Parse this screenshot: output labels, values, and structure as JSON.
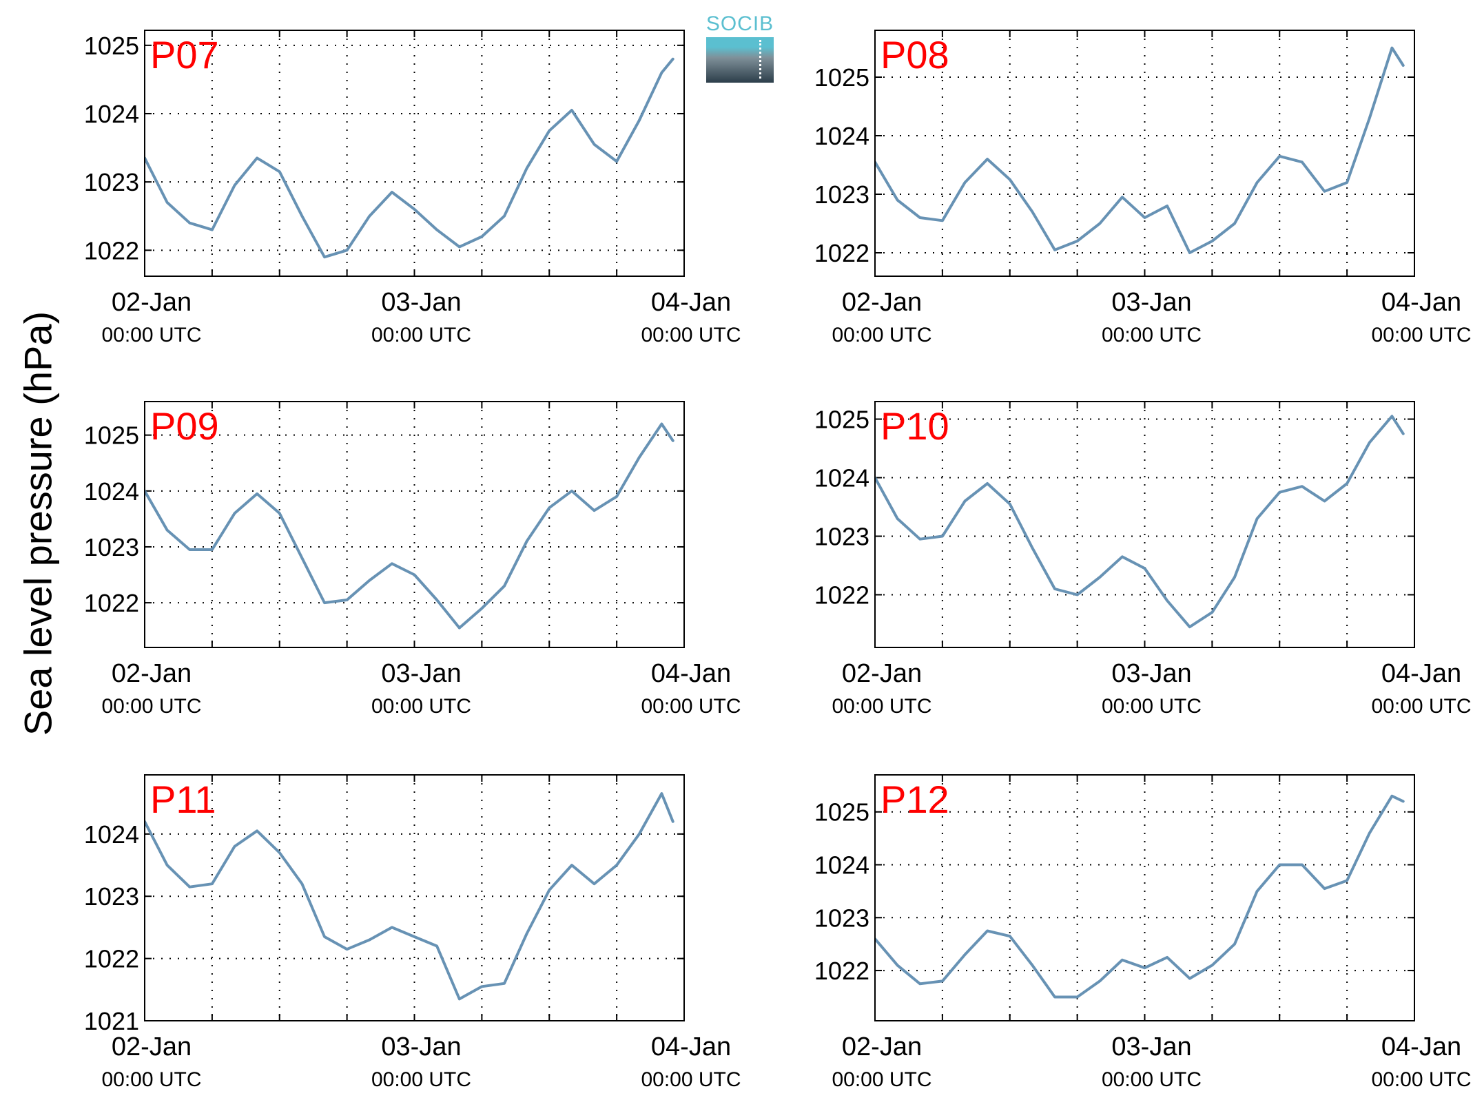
{
  "ylabel": "Sea level pressure (hPa)",
  "logo": {
    "text": "SOCIB"
  },
  "colors": {
    "line": "#6792b4",
    "panel_title": "#ff0000",
    "axis": "#000000"
  },
  "x_ticks": [
    {
      "date": "02-Jan",
      "time": "00:00 UTC"
    },
    {
      "date": "03-Jan",
      "time": "00:00 UTC"
    },
    {
      "date": "04-Jan",
      "time": "00:00 UTC"
    }
  ],
  "chart_data": [
    {
      "type": "line",
      "title": "P07",
      "xlabel": "",
      "ylabel": "Sea level pressure (hPa)",
      "x_range": [
        "02-Jan 00:00 UTC",
        "04-Jan 00:00 UTC"
      ],
      "ylim": [
        1021.62,
        1025.22
      ],
      "yticks": [
        1022,
        1023,
        1024,
        1025
      ],
      "grid": true,
      "x_hours": [
        0,
        2,
        4,
        6,
        8,
        10,
        12,
        14,
        16,
        18,
        20,
        22,
        24,
        26,
        28,
        30,
        32,
        34,
        36,
        38,
        40,
        42,
        44,
        46,
        47
      ],
      "values": [
        1023.35,
        1022.7,
        1022.4,
        1022.3,
        1022.95,
        1023.35,
        1023.15,
        1022.5,
        1021.9,
        1022.0,
        1022.5,
        1022.85,
        1022.6,
        1022.3,
        1022.05,
        1022.2,
        1022.5,
        1023.2,
        1023.75,
        1024.05,
        1023.55,
        1023.3,
        1023.9,
        1024.6,
        1024.8
      ]
    },
    {
      "type": "line",
      "title": "P08",
      "xlabel": "",
      "ylabel": "Sea level pressure (hPa)",
      "x_range": [
        "02-Jan 00:00 UTC",
        "04-Jan 00:00 UTC"
      ],
      "ylim": [
        1021.6,
        1025.8
      ],
      "yticks": [
        1022,
        1023,
        1024,
        1025
      ],
      "grid": true,
      "x_hours": [
        0,
        2,
        4,
        6,
        8,
        10,
        12,
        14,
        16,
        18,
        20,
        22,
        24,
        26,
        28,
        30,
        32,
        34,
        36,
        38,
        40,
        42,
        44,
        46,
        47
      ],
      "values": [
        1023.55,
        1022.9,
        1022.6,
        1022.55,
        1023.2,
        1023.6,
        1023.25,
        1022.7,
        1022.05,
        1022.2,
        1022.5,
        1022.95,
        1022.6,
        1022.8,
        1022.0,
        1022.2,
        1022.5,
        1023.2,
        1023.65,
        1023.55,
        1023.05,
        1023.2,
        1024.3,
        1025.5,
        1025.2
      ]
    },
    {
      "type": "line",
      "title": "P09",
      "xlabel": "",
      "ylabel": "Sea level pressure (hPa)",
      "x_range": [
        "02-Jan 00:00 UTC",
        "04-Jan 00:00 UTC"
      ],
      "ylim": [
        1021.2,
        1025.6
      ],
      "yticks": [
        1022,
        1023,
        1024,
        1025
      ],
      "grid": true,
      "x_hours": [
        0,
        2,
        4,
        6,
        8,
        10,
        12,
        14,
        16,
        18,
        20,
        22,
        24,
        26,
        28,
        30,
        32,
        34,
        36,
        38,
        40,
        42,
        44,
        46,
        47
      ],
      "values": [
        1024.0,
        1023.3,
        1022.95,
        1022.95,
        1023.6,
        1023.95,
        1023.6,
        1022.8,
        1022.0,
        1022.05,
        1022.4,
        1022.7,
        1022.5,
        1022.05,
        1021.55,
        1021.9,
        1022.3,
        1023.1,
        1023.7,
        1024.0,
        1023.65,
        1023.9,
        1024.6,
        1025.2,
        1024.9
      ]
    },
    {
      "type": "line",
      "title": "P10",
      "xlabel": "",
      "ylabel": "Sea level pressure (hPa)",
      "x_range": [
        "02-Jan 00:00 UTC",
        "04-Jan 00:00 UTC"
      ],
      "ylim": [
        1021.1,
        1025.3
      ],
      "yticks": [
        1022,
        1023,
        1024,
        1025
      ],
      "grid": true,
      "x_hours": [
        0,
        2,
        4,
        6,
        8,
        10,
        12,
        14,
        16,
        18,
        20,
        22,
        24,
        26,
        28,
        30,
        32,
        34,
        36,
        38,
        40,
        42,
        44,
        46,
        47
      ],
      "values": [
        1024.0,
        1023.3,
        1022.95,
        1023.0,
        1023.6,
        1023.9,
        1023.55,
        1022.8,
        1022.1,
        1022.0,
        1022.3,
        1022.65,
        1022.45,
        1021.9,
        1021.45,
        1021.7,
        1022.3,
        1023.3,
        1023.75,
        1023.85,
        1023.6,
        1023.9,
        1024.6,
        1025.05,
        1024.75
      ]
    },
    {
      "type": "line",
      "title": "P11",
      "xlabel": "",
      "ylabel": "Sea level pressure (hPa)",
      "x_range": [
        "02-Jan 00:00 UTC",
        "04-Jan 00:00 UTC"
      ],
      "ylim": [
        1021.0,
        1024.95
      ],
      "yticks": [
        1021,
        1022,
        1023,
        1024
      ],
      "grid": true,
      "x_hours": [
        0,
        2,
        4,
        6,
        8,
        10,
        12,
        14,
        16,
        18,
        20,
        22,
        24,
        26,
        28,
        30,
        32,
        34,
        36,
        38,
        40,
        42,
        44,
        46,
        47
      ],
      "values": [
        1024.2,
        1023.5,
        1023.15,
        1023.2,
        1023.8,
        1024.05,
        1023.7,
        1023.2,
        1022.35,
        1022.15,
        1022.3,
        1022.5,
        1022.35,
        1022.2,
        1021.35,
        1021.55,
        1021.6,
        1022.4,
        1023.1,
        1023.5,
        1023.2,
        1023.5,
        1024.0,
        1024.65,
        1024.2
      ]
    },
    {
      "type": "line",
      "title": "P12",
      "xlabel": "",
      "ylabel": "Sea level pressure (hPa)",
      "x_range": [
        "02-Jan 00:00 UTC",
        "04-Jan 00:00 UTC"
      ],
      "ylim": [
        1021.05,
        1025.7
      ],
      "yticks": [
        1022,
        1023,
        1024,
        1025
      ],
      "grid": true,
      "x_hours": [
        0,
        2,
        4,
        6,
        8,
        10,
        12,
        14,
        16,
        18,
        20,
        22,
        24,
        26,
        28,
        30,
        32,
        34,
        36,
        38,
        40,
        42,
        44,
        46,
        47
      ],
      "values": [
        1022.6,
        1022.1,
        1021.75,
        1021.8,
        1022.3,
        1022.75,
        1022.65,
        1022.1,
        1021.5,
        1021.5,
        1021.8,
        1022.2,
        1022.05,
        1022.25,
        1021.85,
        1022.1,
        1022.5,
        1023.5,
        1024.0,
        1024.0,
        1023.55,
        1023.7,
        1024.6,
        1025.3,
        1025.2
      ]
    }
  ]
}
